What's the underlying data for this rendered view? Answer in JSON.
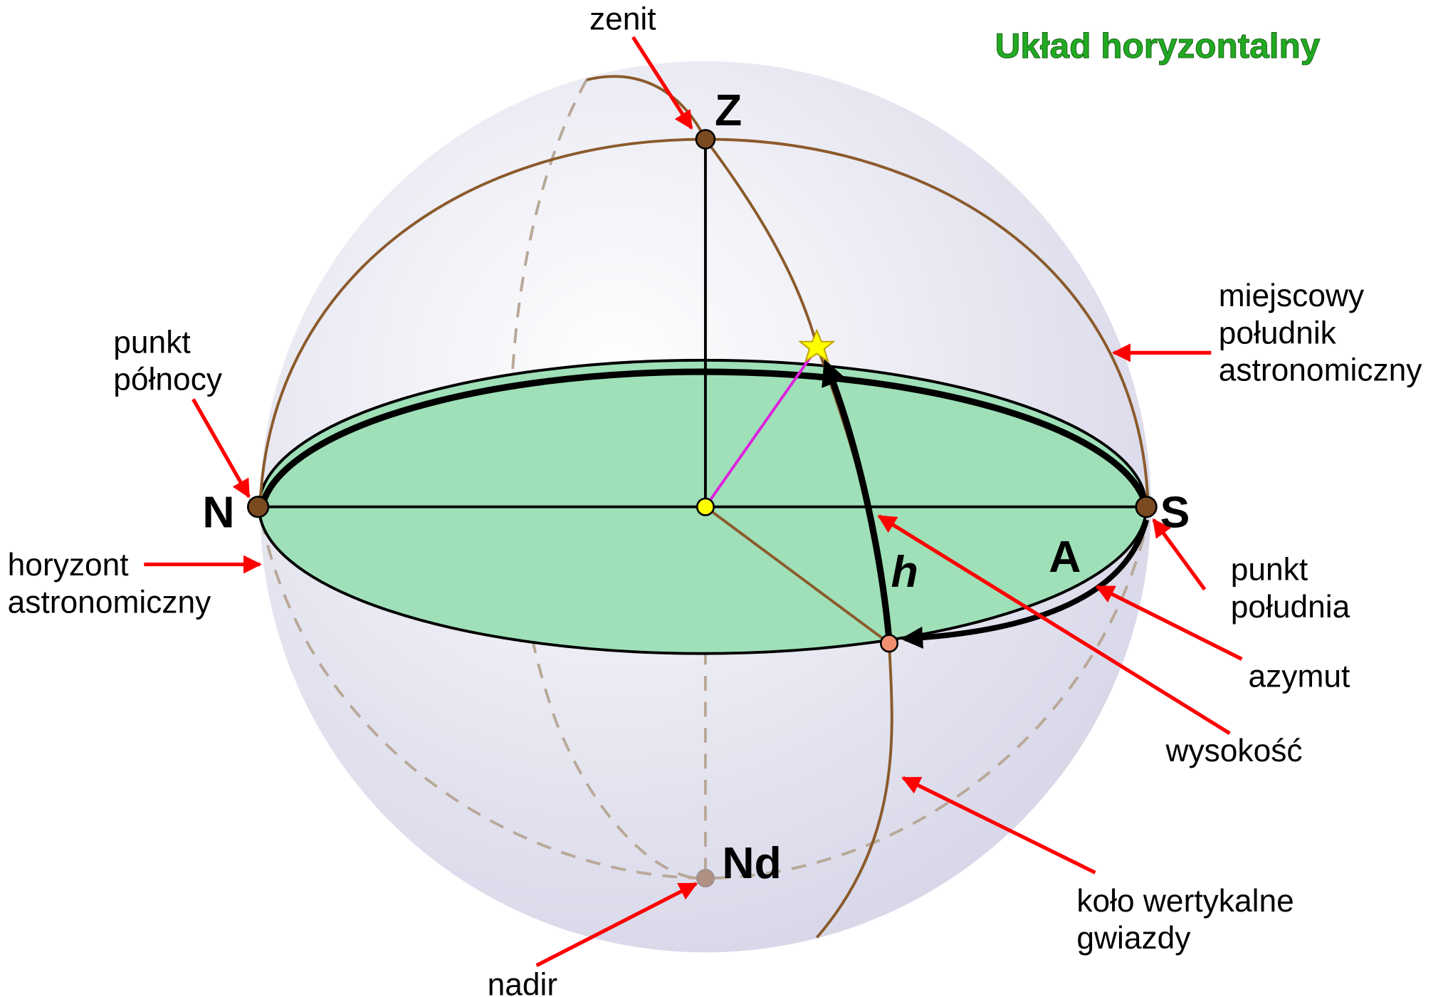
{
  "title": "Układ  horyzontalny",
  "points": {
    "zenith": "Z",
    "north": "N",
    "south": "S",
    "azimuth": "A",
    "altitude": "h",
    "nadir": "Nd"
  },
  "callouts": [
    {
      "lines": [
        "zenit"
      ]
    },
    {
      "lines": [
        "punkt",
        "północy"
      ]
    },
    {
      "lines": [
        "horyzont",
        "astronomiczny"
      ]
    },
    {
      "lines": [
        "miejscowy",
        "południk",
        "astronomiczny"
      ]
    },
    {
      "lines": [
        "punkt",
        "południa"
      ]
    },
    {
      "lines": [
        "azymut"
      ]
    },
    {
      "lines": [
        "wysokość"
      ]
    },
    {
      "lines": [
        "koło wertykalne",
        "gwiazdy"
      ]
    },
    {
      "lines": [
        "nadir"
      ]
    }
  ]
}
